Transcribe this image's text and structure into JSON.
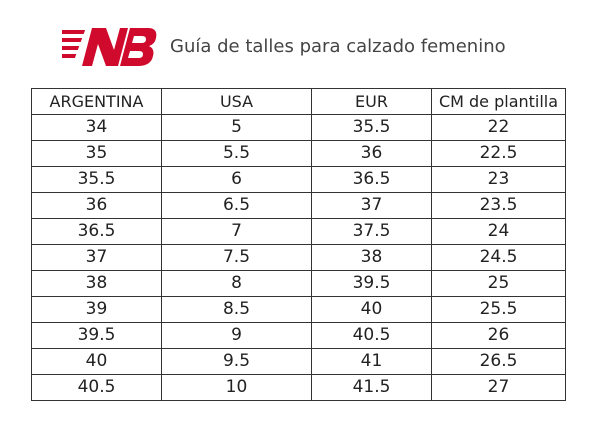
{
  "header": {
    "title": "Guía de talles para calzado femenino"
  },
  "table": {
    "columns": [
      "ARGENTINA",
      "USA",
      "EUR",
      "CM de plantilla"
    ],
    "rows": [
      [
        "34",
        "5",
        "35.5",
        "22"
      ],
      [
        "35",
        "5.5",
        "36",
        "22.5"
      ],
      [
        "35.5",
        "6",
        "36.5",
        "23"
      ],
      [
        "36",
        "6.5",
        "37",
        "23.5"
      ],
      [
        "36.5",
        "7",
        "37.5",
        "24"
      ],
      [
        "37",
        "7.5",
        "38",
        "24.5"
      ],
      [
        "38",
        "8",
        "39.5",
        "25"
      ],
      [
        "39",
        "8.5",
        "40",
        "25.5"
      ],
      [
        "39.5",
        "9",
        "40.5",
        "26"
      ],
      [
        "40",
        "9.5",
        "41",
        "26.5"
      ],
      [
        "40.5",
        "10",
        "41.5",
        "27"
      ]
    ]
  }
}
